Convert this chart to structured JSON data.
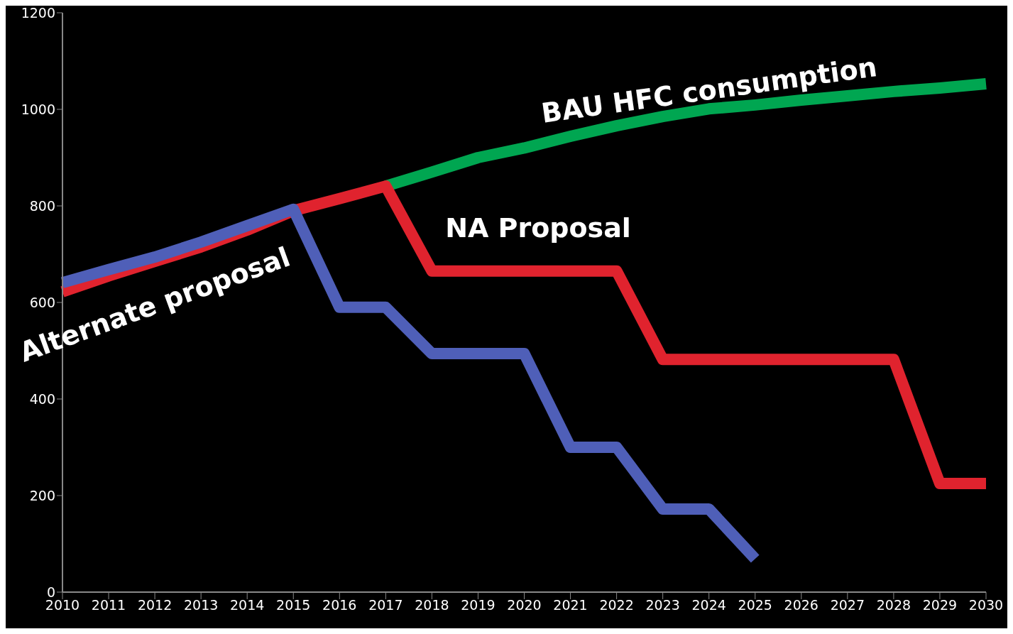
{
  "chart_data": {
    "type": "line",
    "categories": [
      "2010",
      "2011",
      "2012",
      "2013",
      "2014",
      "2015",
      "2016",
      "2017",
      "2018",
      "2019",
      "2020",
      "2021",
      "2022",
      "2023",
      "2024",
      "2025",
      "2026",
      "2027",
      "2028",
      "2029",
      "2030"
    ],
    "series": [
      {
        "name": "BAU HFC consumption",
        "color": "#00a651",
        "values": [
          null,
          null,
          null,
          null,
          null,
          null,
          null,
          841,
          870,
          900,
          920,
          944,
          966,
          985,
          1001,
          1009,
          1019,
          1028,
          1037,
          1044,
          1053
        ]
      },
      {
        "name": "NA Proposal",
        "color": "#e0232e",
        "values": [
          622,
          655,
          685,
          715,
          750,
          790,
          815,
          841,
          665,
          665,
          665,
          665,
          665,
          482,
          482,
          482,
          482,
          482,
          482,
          225,
          225
        ]
      },
      {
        "name": "Alternate proposal",
        "color": "#4f5fb8",
        "values": [
          641,
          668,
          694,
          725,
          759,
          793,
          590,
          590,
          494,
          494,
          494,
          300,
          300,
          172,
          172,
          69,
          null,
          null,
          null,
          null,
          null
        ]
      }
    ],
    "ylim": [
      0,
      1200
    ],
    "yticks": [
      0,
      200,
      400,
      600,
      800,
      1000,
      1200
    ],
    "grid": false,
    "legend": false,
    "marker": "none",
    "line_style": "solid"
  }
}
